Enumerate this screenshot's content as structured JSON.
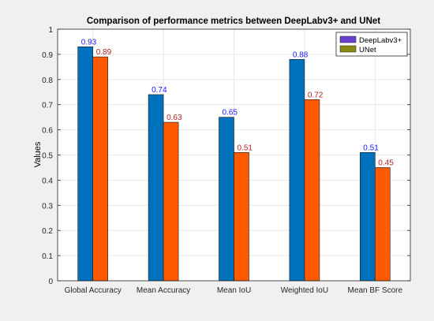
{
  "chart_data": {
    "type": "bar",
    "title": "Comparison of performance metrics between DeepLabv3+ and UNet",
    "xlabel": "",
    "ylabel": "Values",
    "ylim": [
      0,
      1
    ],
    "yticks": [
      0,
      0.1,
      0.2,
      0.3,
      0.4,
      0.5,
      0.6,
      0.7,
      0.8,
      0.9,
      1
    ],
    "ytick_labels": [
      "0",
      "0.1",
      "0.2",
      "0.3",
      "0.4",
      "0.5",
      "0.6",
      "0.7",
      "0.8",
      "0.9",
      "1"
    ],
    "categories": [
      "Global Accuracy",
      "Mean Accuracy",
      "Mean IoU",
      "Weighted IoU",
      "Mean BF Score"
    ],
    "grid": true,
    "legend_position": "top-right",
    "series": [
      {
        "name": "DeepLabv3+",
        "values": [
          0.93,
          0.74,
          0.65,
          0.88,
          0.51
        ],
        "value_labels": [
          "0.93",
          "0.74",
          "0.65",
          "0.88",
          "0.51"
        ],
        "bar_color": "#0072bd",
        "label_color": "#1a1aff",
        "legend_swatch_color": "#6a3fd0"
      },
      {
        "name": "UNet",
        "values": [
          0.89,
          0.63,
          0.51,
          0.72,
          0.45
        ],
        "value_labels": [
          "0.89",
          "0.63",
          "0.51",
          "0.72",
          "0.45"
        ],
        "bar_color": "#ff5a00",
        "label_color": "#b22222",
        "legend_swatch_color": "#8a8a10"
      }
    ]
  }
}
